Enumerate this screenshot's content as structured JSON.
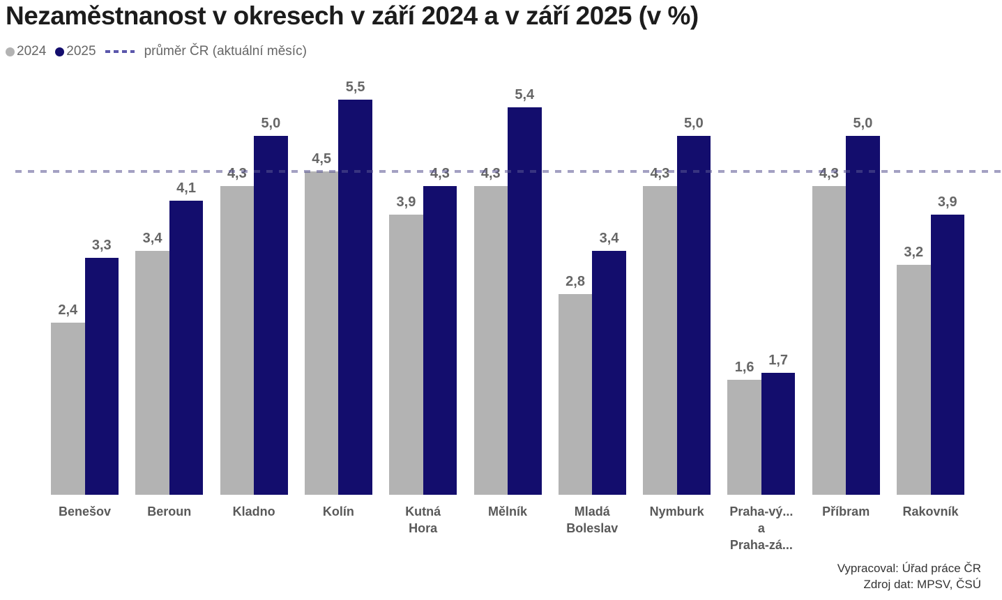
{
  "title": "Nezaměstnanost v okresech v září 2024 a v září 2025 (v %)",
  "legend": {
    "series": [
      {
        "label": "2024",
        "color": "#b3b3b3"
      },
      {
        "label": "2025",
        "color": "#130d6d"
      }
    ],
    "avg_line_label": "průměr ČR (aktuální měsíc)",
    "avg_dash_color": "#5b57ab"
  },
  "credits": {
    "line1": "Vypracoval: Úřad práce ČR",
    "line2": "Zdroj dat: MPSV, ČSÚ"
  },
  "chart_data": {
    "type": "bar",
    "title": "Nezaměstnanost v okresech v září 2024 a v září 2025 (v %)",
    "categories": [
      "Benešov",
      "Beroun",
      "Kladno",
      "Kolín",
      "Kutná Hora",
      "Mělník",
      "Mladá Boleslav",
      "Nymburk",
      "Praha-vý... a Praha-zá...",
      "Příbram",
      "Rakovník"
    ],
    "category_display_lines": [
      [
        "Benešov"
      ],
      [
        "Beroun"
      ],
      [
        "Kladno"
      ],
      [
        "Kolín"
      ],
      [
        "Kutná",
        "Hora"
      ],
      [
        "Mělník"
      ],
      [
        "Mladá",
        "Boleslav"
      ],
      [
        "Nymburk"
      ],
      [
        "Praha-vý...",
        "a",
        "Praha-zá..."
      ],
      [
        "Příbram"
      ],
      [
        "Rakovník"
      ]
    ],
    "series": [
      {
        "name": "2024",
        "color": "#b3b3b3",
        "values": [
          2.4,
          3.4,
          4.3,
          4.5,
          3.9,
          4.3,
          2.8,
          4.3,
          1.6,
          4.3,
          3.2
        ],
        "labels": [
          "2,4",
          "3,4",
          "4,3",
          "4,5",
          "3,9",
          "4,3",
          "2,8",
          "4,3",
          "1,6",
          "4,3",
          "3,2"
        ]
      },
      {
        "name": "2025",
        "color": "#130d6d",
        "values": [
          3.3,
          4.1,
          5.0,
          5.5,
          4.3,
          5.4,
          3.4,
          5.0,
          1.7,
          5.0,
          3.9
        ],
        "labels": [
          "3,3",
          "4,1",
          "5,0",
          "5,5",
          "4,3",
          "5,4",
          "3,4",
          "5,0",
          "1,7",
          "5,0",
          "3,9"
        ]
      }
    ],
    "avg_line": {
      "label": "průměr ČR (aktuální měsíc)",
      "value": 4.5,
      "color": "#57538f",
      "opacity": 0.55,
      "style": "dashed"
    },
    "xlabel": "",
    "ylabel": "",
    "ylim": [
      0,
      5.8
    ],
    "grid": false,
    "legend_position": "top-left",
    "value_labels_shown": true,
    "decimal_separator": ","
  }
}
